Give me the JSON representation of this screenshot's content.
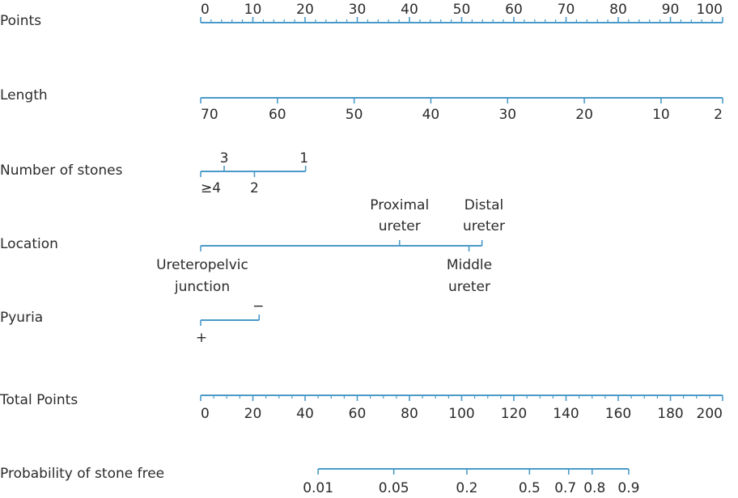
{
  "chart_data": {
    "type": "nomogram",
    "title": "",
    "axes": [
      {
        "name": "Points",
        "min": 0,
        "max": 100,
        "ticks": [
          {
            "value": 0,
            "label": "0"
          },
          {
            "value": 10,
            "label": "10"
          },
          {
            "value": 20,
            "label": "20"
          },
          {
            "value": 30,
            "label": "30"
          },
          {
            "value": 40,
            "label": "40"
          },
          {
            "value": 50,
            "label": "50"
          },
          {
            "value": 60,
            "label": "60"
          },
          {
            "value": 70,
            "label": "70"
          },
          {
            "value": 80,
            "label": "80"
          },
          {
            "value": 90,
            "label": "90"
          },
          {
            "value": 100,
            "label": "100"
          }
        ]
      },
      {
        "name": "Length",
        "ticks": [
          {
            "points": 0,
            "label": "70"
          },
          {
            "points": 14.7,
            "label": "60"
          },
          {
            "points": 29.4,
            "label": "50"
          },
          {
            "points": 44.1,
            "label": "40"
          },
          {
            "points": 58.8,
            "label": "30"
          },
          {
            "points": 73.5,
            "label": "20"
          },
          {
            "points": 88.2,
            "label": "10"
          },
          {
            "points": 100,
            "label": "2"
          }
        ]
      },
      {
        "name": "Number of stones",
        "ticks": [
          {
            "points": 0,
            "label": "≥4"
          },
          {
            "points": 4.5,
            "label": "3"
          },
          {
            "points": 10.3,
            "label": "2"
          },
          {
            "points": 20.1,
            "label": "1"
          }
        ]
      },
      {
        "name": "Location",
        "ticks": [
          {
            "points": 0,
            "label": "Ureteropelvic junction"
          },
          {
            "points": 38.1,
            "label": "Proximal ureter"
          },
          {
            "points": 51.4,
            "label": "Middle ureter"
          },
          {
            "points": 53.9,
            "label": "Distal ureter"
          }
        ]
      },
      {
        "name": "Pyuria",
        "ticks": [
          {
            "points": 0,
            "label": "+"
          },
          {
            "points": 11.2,
            "label": "−"
          }
        ]
      },
      {
        "name": "Total Points",
        "min": 0,
        "max": 200,
        "ticks": [
          {
            "value": 0,
            "label": "0"
          },
          {
            "value": 20,
            "label": "20"
          },
          {
            "value": 40,
            "label": "40"
          },
          {
            "value": 60,
            "label": "60"
          },
          {
            "value": 80,
            "label": "80"
          },
          {
            "value": 100,
            "label": "100"
          },
          {
            "value": 120,
            "label": "120"
          },
          {
            "value": 140,
            "label": "140"
          },
          {
            "value": 160,
            "label": "160"
          },
          {
            "value": 180,
            "label": "180"
          },
          {
            "value": 200,
            "label": "200"
          }
        ]
      },
      {
        "name": "Probability of stone free",
        "ticks": [
          {
            "total_points": 45,
            "label": "0.01"
          },
          {
            "total_points": 74,
            "label": "0.05"
          },
          {
            "total_points": 102,
            "label": "0.2"
          },
          {
            "total_points": 126,
            "label": "0.5"
          },
          {
            "total_points": 141,
            "label": "0.7"
          },
          {
            "total_points": 150,
            "label": "0.8"
          },
          {
            "total_points": 164,
            "label": "0.9"
          }
        ]
      }
    ],
    "grid": false
  }
}
